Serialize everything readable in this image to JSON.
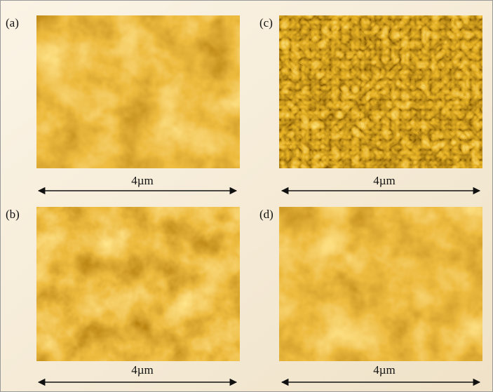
{
  "panels": [
    {
      "label": "(a)",
      "scale": "4µm"
    },
    {
      "label": "(b)",
      "scale": "4µm"
    },
    {
      "label": "(c)",
      "scale": "4µm"
    },
    {
      "label": "(d)",
      "scale": "4µm"
    }
  ]
}
